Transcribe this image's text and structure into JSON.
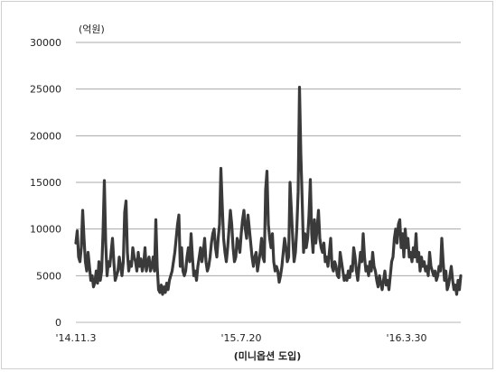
{
  "chart_data": {
    "type": "line",
    "unit_label": "(억원)",
    "xlabel": "(미니옵션 도입)",
    "ylabel": "",
    "ylim": [
      0,
      30000
    ],
    "yticks": [
      "0",
      "5000",
      "10000",
      "15000",
      "20000",
      "25000",
      "30000"
    ],
    "xtick_labels": [
      "'14.11.3",
      "'15.7.20",
      "'16.3.30"
    ],
    "xtick_index": [
      0,
      122,
      244
    ],
    "grid": "horizontal",
    "legend": "none",
    "line_color": "#3a3a3a",
    "series": [
      {
        "values": [
          8500,
          9800,
          7000,
          6500,
          8000,
          12000,
          9000,
          6500,
          5500,
          7500,
          6000,
          4500,
          5000,
          3800,
          4300,
          5500,
          4200,
          6500,
          4500,
          5500,
          9500,
          15200,
          8500,
          5000,
          6500,
          6000,
          7500,
          9000,
          6500,
          4500,
          5000,
          5500,
          7000,
          6000,
          5000,
          6500,
          11800,
          13000,
          7500,
          5500,
          6500,
          6000,
          8000,
          7000,
          6500,
          5500,
          7500,
          6000,
          6800,
          5500,
          6200,
          8000,
          5500,
          6500,
          7000,
          5500,
          6000,
          7000,
          5500,
          11000,
          6000,
          3500,
          3200,
          4000,
          3000,
          3800,
          3200,
          4200,
          3500,
          4500,
          5000,
          5500,
          6500,
          7500,
          9000,
          10500,
          11500,
          6000,
          8000,
          5500,
          5000,
          5500,
          7000,
          8000,
          6500,
          9500,
          7000,
          5000,
          5500,
          4500,
          6000,
          7000,
          8000,
          6500,
          7500,
          9000,
          6500,
          5500,
          6000,
          7000,
          8500,
          9500,
          10000,
          8000,
          7000,
          9000,
          10500,
          16500,
          12500,
          9000,
          7500,
          6500,
          8000,
          10000,
          12000,
          10500,
          8000,
          6500,
          7000,
          9000,
          8500,
          7500,
          9500,
          11000,
          12000,
          10000,
          9000,
          11500,
          10000,
          8500,
          7000,
          6000,
          7000,
          7500,
          5500,
          6500,
          7500,
          9000,
          7000,
          6500,
          14200,
          16200,
          10500,
          9000,
          8000,
          9500,
          6500,
          5500,
          6000,
          5500,
          4300,
          5000,
          6000,
          7500,
          9000,
          8000,
          6500,
          7000,
          15000,
          12000,
          9000,
          6500,
          7500,
          10000,
          14000,
          25200,
          18000,
          13000,
          7500,
          9500,
          8000,
          9000,
          11500,
          15300,
          9500,
          7500,
          11000,
          8500,
          10000,
          12000,
          9000,
          8000,
          7500,
          8500,
          6500,
          7000,
          6000,
          7500,
          9000,
          6000,
          5500,
          6500,
          6000,
          5000,
          4800,
          7500,
          6500,
          5500,
          4500,
          5000,
          4500,
          5500,
          4800,
          6000,
          5500,
          8000,
          7000,
          5500,
          4500,
          6000,
          7500,
          6500,
          9500,
          7000,
          5500,
          6000,
          5000,
          6500,
          5500,
          7500,
          6000,
          5500,
          4500,
          3800,
          5000,
          4200,
          3500,
          4500,
          5500,
          4000,
          4500,
          3500,
          5000,
          6500,
          7000,
          9000,
          10000,
          8500,
          10500,
          11000,
          8000,
          9500,
          7000,
          10000,
          8000,
          9000,
          7000,
          7500,
          6500,
          8000,
          7000,
          9500,
          6500,
          7500,
          5500,
          7000,
          6000,
          6500,
          5500,
          6000,
          5000,
          7500,
          6000,
          5500,
          5000,
          5500,
          4500,
          5000,
          6000,
          5500,
          9000,
          6500,
          4500,
          5500,
          3500,
          4000,
          5000,
          6000,
          4500,
          3500,
          4000,
          3000,
          4500,
          3500,
          5000
        ]
      }
    ]
  }
}
